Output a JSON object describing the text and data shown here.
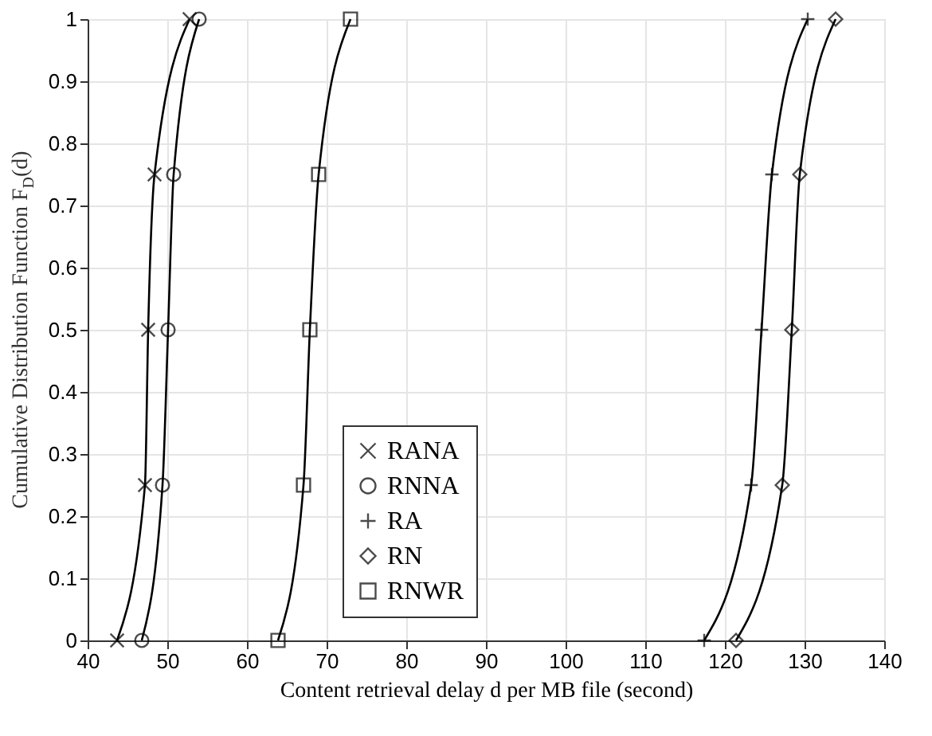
{
  "chart_data": {
    "type": "line",
    "xlabel": "Content retrieval delay d per MB file (second)",
    "ylabel": "Cumulative Distribution Function F$_{D}$(d)",
    "xlim": [
      40,
      140
    ],
    "xticks": [
      40,
      50,
      60,
      70,
      80,
      90,
      100,
      110,
      120,
      130,
      140
    ],
    "ylim": [
      0,
      1
    ],
    "yticks": [
      0,
      0.1,
      0.2,
      0.3,
      0.4,
      0.5,
      0.6,
      0.7,
      0.8,
      0.9,
      1
    ],
    "grid": true,
    "legend": "bottom",
    "line_style": "solid",
    "series": [
      {
        "name": "RANA",
        "color": "#000000",
        "marker": "cross",
        "x": [
          43.7,
          47.2,
          47.6,
          48.4,
          52.8
        ],
        "values": [
          0,
          0.25,
          0.5,
          0.75,
          1
        ]
      },
      {
        "name": "RNNA",
        "color": "#000000",
        "marker": "circle",
        "x": [
          46.8,
          49.4,
          50.1,
          50.8,
          54.0
        ],
        "values": [
          0,
          0.25,
          0.5,
          0.75,
          1
        ]
      },
      {
        "name": "RA",
        "color": "#000000",
        "marker": "plus",
        "x": [
          117.4,
          123.3,
          124.6,
          125.9,
          130.4
        ],
        "values": [
          0,
          0.25,
          0.5,
          0.75,
          1
        ]
      },
      {
        "name": "RN",
        "color": "#000000",
        "marker": "diamond",
        "x": [
          121.4,
          127.2,
          128.4,
          129.4,
          133.9
        ],
        "values": [
          0,
          0.25,
          0.5,
          0.75,
          1
        ]
      },
      {
        "name": "RNWR",
        "color": "#000000",
        "marker": "square",
        "x": [
          63.9,
          67.1,
          67.9,
          69.0,
          73.0
        ],
        "values": [
          0,
          0.25,
          0.5,
          0.75,
          1
        ]
      }
    ]
  }
}
